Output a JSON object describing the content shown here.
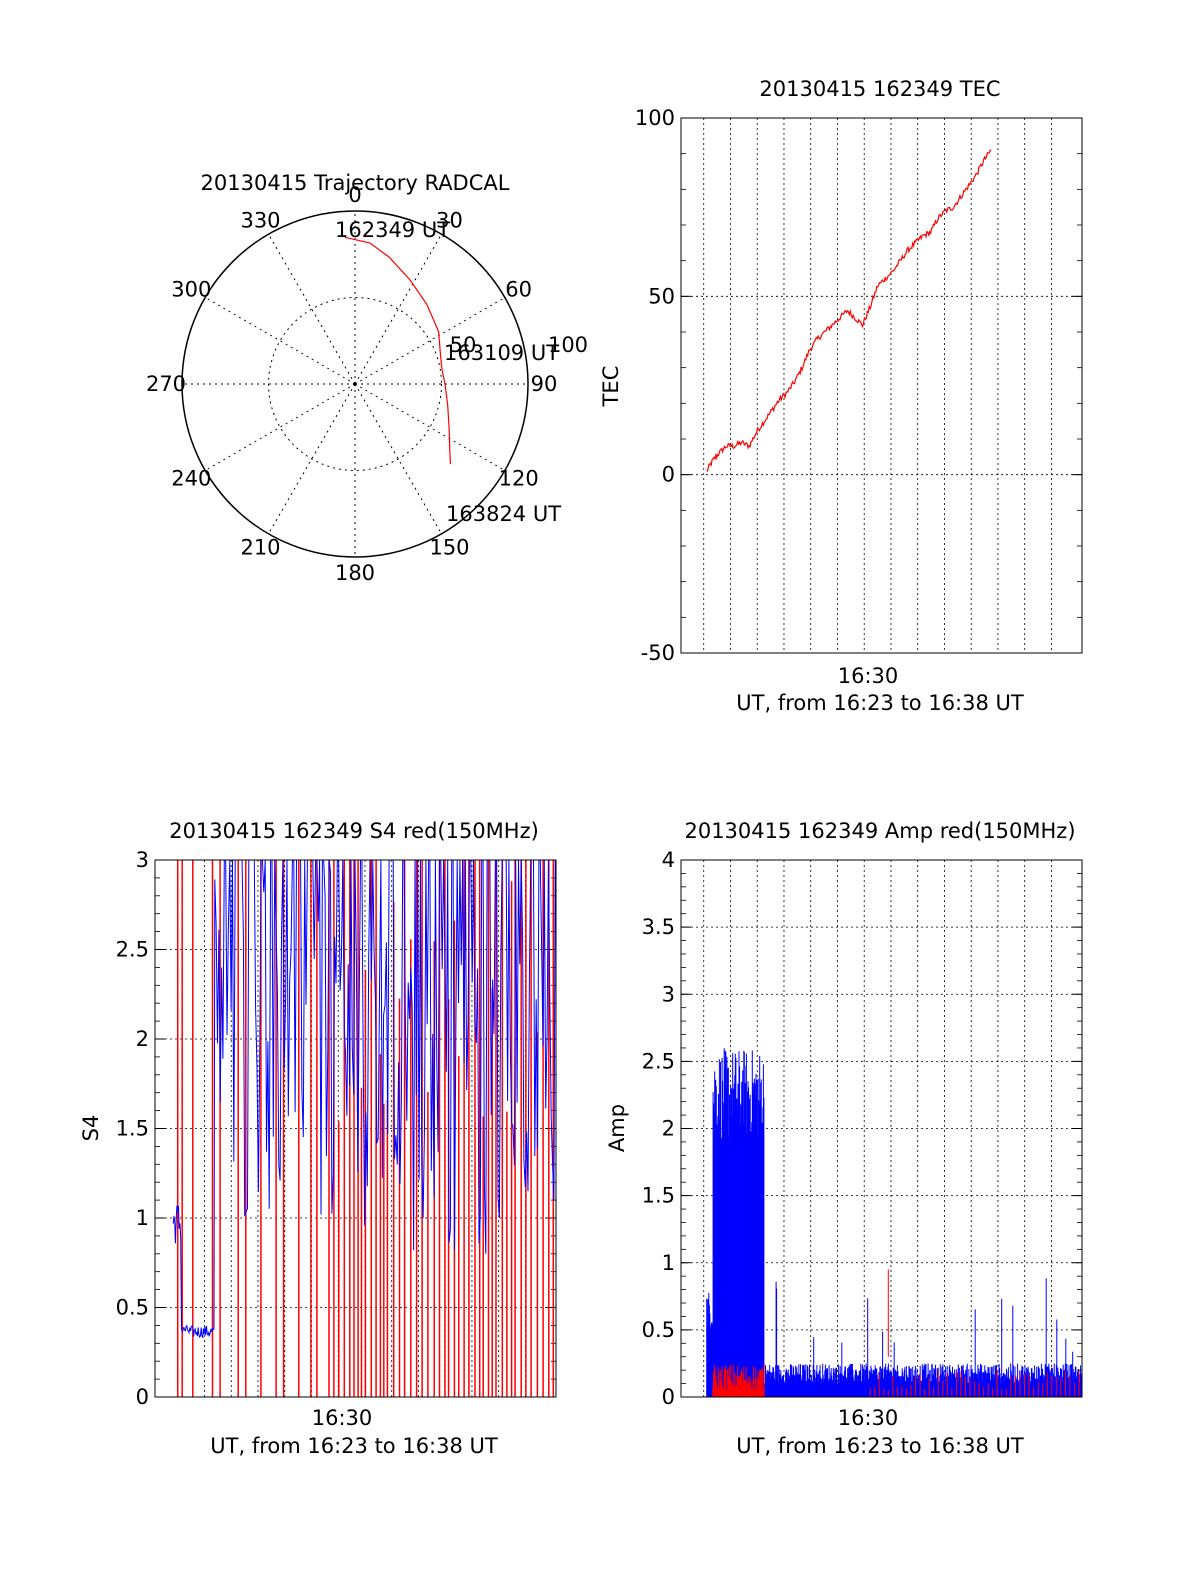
{
  "colors": {
    "red": "#ff0000",
    "blue": "#0000ff",
    "axis": "#000000"
  },
  "chart_data": [
    {
      "id": "trajectory",
      "type": "polar",
      "title": "20130415 Trajectory RADCAL",
      "angle_labels": [
        "0",
        "30",
        "60",
        "90",
        "120",
        "150",
        "180",
        "210",
        "240",
        "270",
        "300",
        "330"
      ],
      "ring_labels": [
        "50",
        "100"
      ],
      "start_label": "162349 UT",
      "mid_label": "163109 UT",
      "end_label": "163824 UT",
      "series": [
        {
          "color": "red",
          "points": [
            [
              -4,
              85
            ],
            [
              6,
              82
            ],
            [
              15,
              76
            ],
            [
              28,
              68
            ],
            [
              42,
              62
            ],
            [
              58,
              57
            ],
            [
              72,
              52
            ],
            [
              80,
              51
            ],
            [
              90,
              52
            ],
            [
              103,
              55
            ],
            [
              115,
              60
            ],
            [
              124,
              66
            ],
            [
              130,
              72
            ]
          ]
        }
      ]
    },
    {
      "id": "tec",
      "type": "line",
      "title": "20130415 162349 TEC",
      "ylabel": "TEC",
      "xlabel": "UT, from 16:23 to 16:38 UT",
      "xtick_label": "16:30",
      "ylim": [
        -50,
        100
      ],
      "yticks": [
        "100",
        "50",
        "0",
        "-50"
      ],
      "xlim": [
        16.375,
        16.64
      ],
      "series": [
        {
          "color": "red",
          "points": [
            [
              16.392,
              1
            ],
            [
              16.396,
              4
            ],
            [
              16.4,
              6
            ],
            [
              16.405,
              8
            ],
            [
              16.41,
              8
            ],
            [
              16.415,
              9
            ],
            [
              16.42,
              8
            ],
            [
              16.425,
              12
            ],
            [
              16.43,
              15
            ],
            [
              16.435,
              18
            ],
            [
              16.44,
              21
            ],
            [
              16.445,
              23
            ],
            [
              16.45,
              26
            ],
            [
              16.455,
              30
            ],
            [
              16.46,
              35
            ],
            [
              16.465,
              38
            ],
            [
              16.47,
              40
            ],
            [
              16.475,
              42
            ],
            [
              16.48,
              44
            ],
            [
              16.485,
              46
            ],
            [
              16.49,
              44
            ],
            [
              16.495,
              42
            ],
            [
              16.5,
              47
            ],
            [
              16.505,
              53
            ],
            [
              16.51,
              55
            ],
            [
              16.515,
              57
            ],
            [
              16.52,
              60
            ],
            [
              16.525,
              63
            ],
            [
              16.53,
              65
            ],
            [
              16.535,
              67
            ],
            [
              16.54,
              68
            ],
            [
              16.545,
              72
            ],
            [
              16.55,
              74
            ],
            [
              16.555,
              75
            ],
            [
              16.56,
              78
            ],
            [
              16.565,
              81
            ],
            [
              16.57,
              84
            ],
            [
              16.575,
              88
            ],
            [
              16.58,
              91
            ]
          ]
        }
      ]
    },
    {
      "id": "s4",
      "type": "line",
      "title": "20130415 162349 S4 red(150MHz)",
      "ylabel": "S4",
      "xlabel": "UT, from 16:23 to 16:38 UT",
      "xtick_label": "16:30",
      "ylim": [
        0,
        3
      ],
      "yticks": [
        "3",
        "2.5",
        "2",
        "1.5",
        "1",
        "0.5",
        "0"
      ],
      "xlim": [
        16.375,
        16.64
      ],
      "series": [
        {
          "name": "",
          "color": "red",
          "noise": "spikes_full",
          "segments": [
            [
              16.375,
              16.64
            ]
          ]
        },
        {
          "name": "",
          "color": "blue",
          "noise": "s4_blue",
          "segments": [
            [
              16.375,
              16.64
            ]
          ]
        }
      ]
    },
    {
      "id": "amp",
      "type": "line",
      "title": "20130415 162349 Amp red(150MHz)",
      "ylabel": "Amp",
      "xlabel": "UT, from 16:23 to 16:38 UT",
      "xtick_label": "16:30",
      "ylim": [
        0,
        4
      ],
      "yticks": [
        "4",
        "3.5",
        "3",
        "2.5",
        "2",
        "1.5",
        "1",
        "0.5",
        "0"
      ],
      "xlim": [
        16.375,
        16.64
      ],
      "series": [
        {
          "color": "blue",
          "noise": "amp_blue"
        },
        {
          "color": "red",
          "noise": "amp_red"
        }
      ]
    }
  ]
}
